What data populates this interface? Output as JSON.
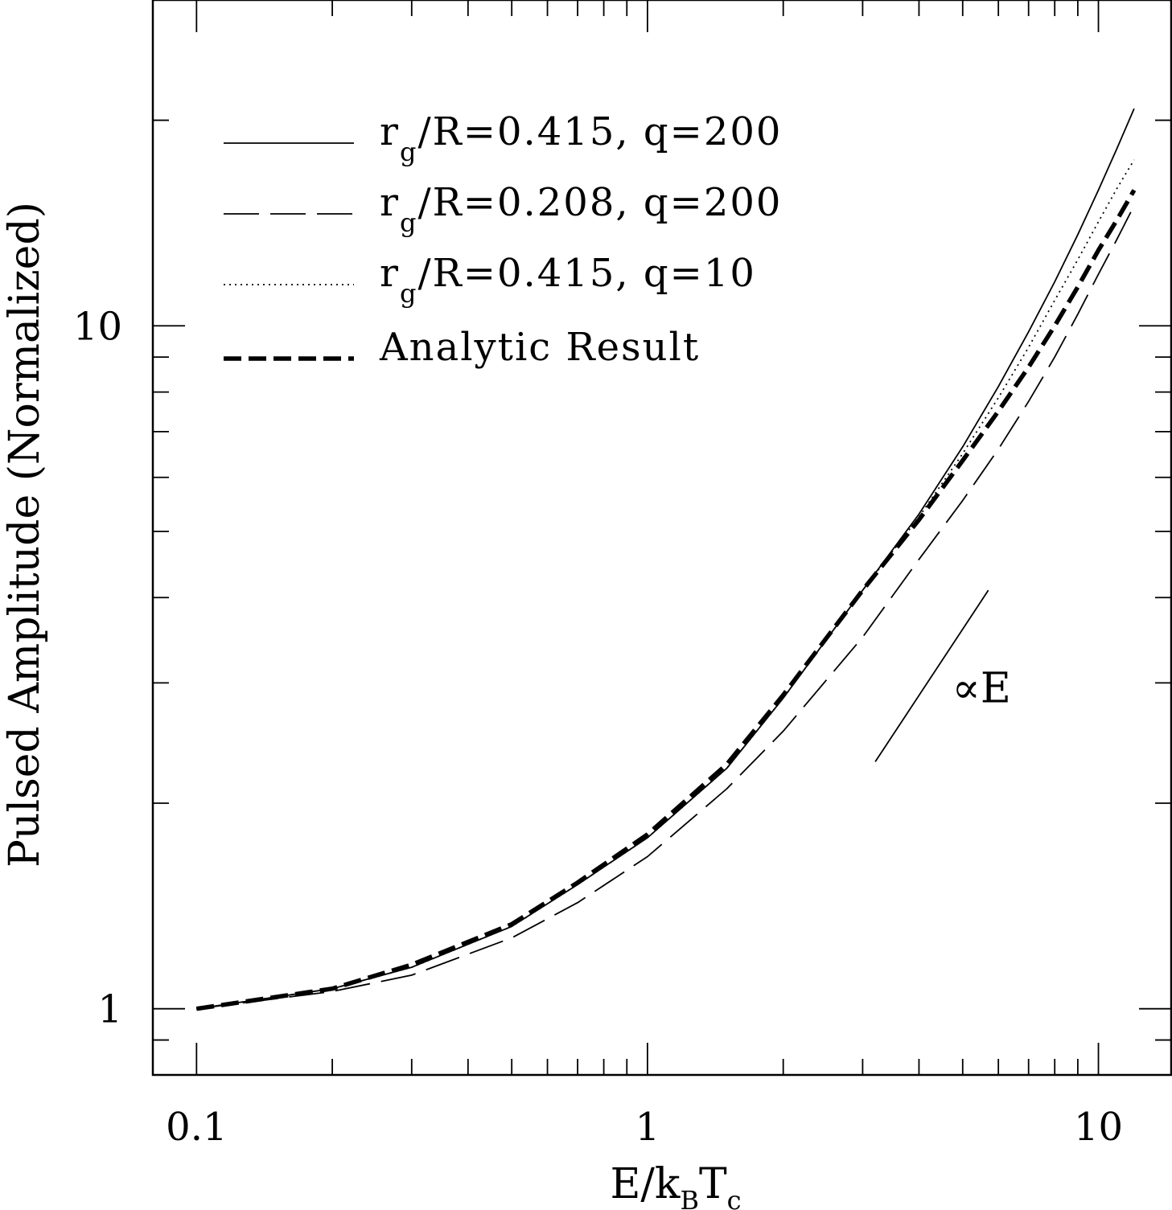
{
  "chart_data": {
    "type": "line",
    "title": "",
    "xlabel": "E/k_BT_c",
    "xlabel_parts": {
      "main": "E/k",
      "sub1": "B",
      "mid": "T",
      "sub2": "c"
    },
    "ylabel": "Pulsed Amplitude (Normalized)",
    "x_scale": "log",
    "y_scale": "log",
    "xlim": [
      0.08,
      14.5
    ],
    "ylim": [
      0.8,
      30
    ],
    "x_ticks": [
      {
        "value": 0.1,
        "label": "0.1"
      },
      {
        "value": 1,
        "label": "1"
      },
      {
        "value": 10,
        "label": "10"
      }
    ],
    "y_ticks": [
      {
        "value": 1,
        "label": "1"
      },
      {
        "value": 10,
        "label": "10"
      }
    ],
    "grid": false,
    "legend_position": "top-left",
    "series": [
      {
        "id": "solid",
        "label_main": "r",
        "label_sub": "g",
        "label_rest": "/R=0.415,  q=200",
        "style": "solid",
        "x": [
          0.1,
          0.2,
          0.3,
          0.5,
          0.7,
          1.0,
          1.5,
          2.0,
          3.0,
          4.0,
          5.0,
          6.0,
          7.0,
          8.0,
          9.0,
          10.0,
          11.0,
          12.0
        ],
        "y": [
          1.0,
          1.07,
          1.15,
          1.32,
          1.52,
          1.78,
          2.25,
          2.85,
          4.1,
          5.3,
          6.65,
          8.15,
          9.8,
          11.6,
          13.6,
          15.8,
          18.2,
          20.8
        ]
      },
      {
        "id": "long-dash",
        "label_main": "r",
        "label_sub": "g",
        "label_rest": "/R=0.208,  q=200",
        "style": "long-dash",
        "x": [
          0.1,
          0.2,
          0.3,
          0.5,
          0.7,
          1.0,
          1.5,
          2.0,
          3.0,
          4.0,
          5.0,
          6.0,
          7.0,
          8.0,
          9.0,
          10.0,
          11.0,
          12.0
        ],
        "y": [
          1.0,
          1.06,
          1.12,
          1.27,
          1.43,
          1.67,
          2.1,
          2.55,
          3.5,
          4.55,
          5.55,
          6.6,
          7.75,
          9.0,
          10.4,
          11.9,
          13.4,
          15.0
        ]
      },
      {
        "id": "dotted",
        "label_main": "r",
        "label_sub": "g",
        "label_rest": "/R=0.415,  q=10",
        "style": "dotted",
        "x": [
          0.1,
          0.2,
          0.3,
          0.5,
          0.7,
          1.0,
          1.5,
          2.0,
          3.0,
          4.0,
          5.0,
          6.0,
          7.0,
          8.0,
          9.0,
          10.0,
          11.0,
          12.0
        ],
        "y": [
          1.0,
          1.07,
          1.15,
          1.32,
          1.52,
          1.78,
          2.25,
          2.85,
          4.1,
          5.25,
          6.5,
          7.85,
          9.3,
          10.9,
          12.5,
          14.2,
          15.9,
          17.5
        ]
      },
      {
        "id": "analytic",
        "label_main": "Analytic Result",
        "label_sub": "",
        "label_rest": "",
        "style": "thick-dash",
        "x": [
          0.1,
          0.2,
          0.3,
          0.5,
          0.7,
          1.0,
          1.5,
          2.0,
          3.0,
          4.0,
          5.0,
          6.0,
          7.0,
          8.0,
          9.0,
          10.0,
          11.0,
          12.0
        ],
        "y": [
          1.0,
          1.07,
          1.16,
          1.33,
          1.53,
          1.8,
          2.28,
          2.88,
          4.1,
          5.2,
          6.35,
          7.5,
          8.7,
          10.0,
          11.4,
          12.9,
          14.3,
          15.8
        ]
      }
    ],
    "reference_line": {
      "label": "∝E",
      "x": [
        3.2,
        5.7
      ],
      "y": [
        2.3,
        4.1
      ]
    }
  }
}
